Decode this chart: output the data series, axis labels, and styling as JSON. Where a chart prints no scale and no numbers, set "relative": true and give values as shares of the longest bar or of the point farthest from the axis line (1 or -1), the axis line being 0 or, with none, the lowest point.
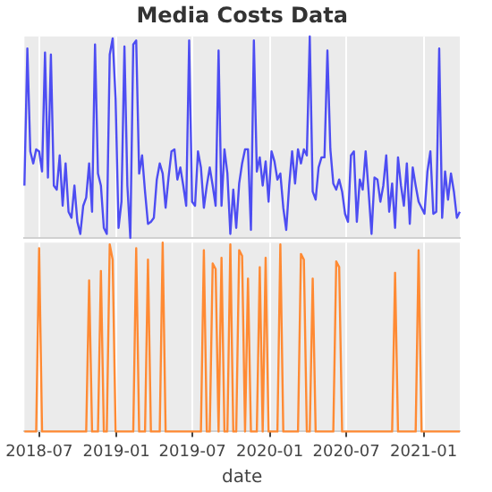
{
  "chart_data": [
    {
      "type": "line",
      "title": "Media Costs Data",
      "relative": true,
      "grid": "x",
      "tick_labels": false,
      "legend": false,
      "xlim": [
        "2018-05-27",
        "2021-03-28"
      ],
      "xticks": [
        "2018-07",
        "2019-01",
        "2019-07",
        "2020-01",
        "2020-07",
        "2021-01"
      ],
      "x": [
        "2018-05-27",
        "2018-06-03",
        "2018-06-10",
        "2018-06-17",
        "2018-06-24",
        "2018-07-01",
        "2018-07-08",
        "2018-07-15",
        "2018-07-22",
        "2018-07-29",
        "2018-08-05",
        "2018-08-12",
        "2018-08-19",
        "2018-08-26",
        "2018-09-02",
        "2018-09-09",
        "2018-09-16",
        "2018-09-23",
        "2018-09-30",
        "2018-10-07",
        "2018-10-14",
        "2018-10-21",
        "2018-10-28",
        "2018-11-04",
        "2018-11-11",
        "2018-11-18",
        "2018-11-25",
        "2018-12-02",
        "2018-12-09",
        "2018-12-16",
        "2018-12-23",
        "2018-12-30",
        "2019-01-06",
        "2019-01-13",
        "2019-01-20",
        "2019-01-27",
        "2019-02-03",
        "2019-02-10",
        "2019-02-17",
        "2019-02-24",
        "2019-03-03",
        "2019-03-10",
        "2019-03-17",
        "2019-03-24",
        "2019-03-31",
        "2019-04-07",
        "2019-04-14",
        "2019-04-21",
        "2019-04-28",
        "2019-05-05",
        "2019-05-12",
        "2019-05-19",
        "2019-05-26",
        "2019-06-02",
        "2019-06-09",
        "2019-06-16",
        "2019-06-23",
        "2019-06-30",
        "2019-07-07",
        "2019-07-14",
        "2019-07-21",
        "2019-07-28",
        "2019-08-04",
        "2019-08-11",
        "2019-08-18",
        "2019-08-25",
        "2019-09-01",
        "2019-09-08",
        "2019-09-15",
        "2019-09-22",
        "2019-09-29",
        "2019-10-06",
        "2019-10-13",
        "2019-10-20",
        "2019-10-27",
        "2019-11-03",
        "2019-11-10",
        "2019-11-17",
        "2019-11-24",
        "2019-12-01",
        "2019-12-08",
        "2019-12-15",
        "2019-12-22",
        "2019-12-29",
        "2020-01-05",
        "2020-01-12",
        "2020-01-19",
        "2020-01-26",
        "2020-02-02",
        "2020-02-09",
        "2020-02-16",
        "2020-02-23",
        "2020-03-01",
        "2020-03-08",
        "2020-03-15",
        "2020-03-22",
        "2020-03-29",
        "2020-04-05",
        "2020-04-12",
        "2020-04-19",
        "2020-04-26",
        "2020-05-03",
        "2020-05-10",
        "2020-05-17",
        "2020-05-24",
        "2020-05-31",
        "2020-06-07",
        "2020-06-14",
        "2020-06-21",
        "2020-06-28",
        "2020-07-05",
        "2020-07-12",
        "2020-07-19",
        "2020-07-26",
        "2020-08-02",
        "2020-08-09",
        "2020-08-16",
        "2020-08-23",
        "2020-08-30",
        "2020-09-06",
        "2020-09-13",
        "2020-09-20",
        "2020-09-27",
        "2020-10-04",
        "2020-10-11",
        "2020-10-18",
        "2020-10-25",
        "2020-11-01",
        "2020-11-08",
        "2020-11-15",
        "2020-11-22",
        "2020-11-29",
        "2020-12-06",
        "2020-12-13",
        "2020-12-20",
        "2020-12-27",
        "2021-01-03",
        "2021-01-10",
        "2021-01-17",
        "2021-01-24",
        "2021-01-31",
        "2021-02-07",
        "2021-02-14",
        "2021-02-21",
        "2021-02-28",
        "2021-03-07",
        "2021-03-14",
        "2021-03-21",
        "2021-03-28"
      ],
      "series": [
        {
          "color": "#4d4df2",
          "values": [
            0.26,
            0.94,
            0.43,
            0.37,
            0.44,
            0.43,
            0.33,
            0.92,
            0.3,
            0.91,
            0.26,
            0.24,
            0.41,
            0.16,
            0.37,
            0.13,
            0.1,
            0.26,
            0.08,
            0.02,
            0.16,
            0.2,
            0.37,
            0.13,
            0.96,
            0.32,
            0.26,
            0.05,
            0.02,
            0.91,
            0.99,
            0.69,
            0.05,
            0.18,
            0.95,
            0.26,
            0,
            0.96,
            0.98,
            0.32,
            0.41,
            0.23,
            0.07,
            0.08,
            0.1,
            0.29,
            0.37,
            0.32,
            0.15,
            0.3,
            0.43,
            0.44,
            0.29,
            0.35,
            0.26,
            0.16,
            0.98,
            0.18,
            0.16,
            0.43,
            0.35,
            0.15,
            0.26,
            0.35,
            0.26,
            0.16,
            0.93,
            0.16,
            0.44,
            0.32,
            0.02,
            0.24,
            0.05,
            0.27,
            0.37,
            0.44,
            0.44,
            0.04,
            0.98,
            0.33,
            0.4,
            0.26,
            0.38,
            0.18,
            0.43,
            0.38,
            0.29,
            0.32,
            0.15,
            0.04,
            0.26,
            0.43,
            0.27,
            0.44,
            0.37,
            0.44,
            0.41,
            1,
            0.23,
            0.19,
            0.35,
            0.4,
            0.4,
            0.93,
            0.44,
            0.27,
            0.24,
            0.29,
            0.23,
            0.12,
            0.08,
            0.41,
            0.43,
            0.08,
            0.29,
            0.24,
            0.43,
            0.23,
            0.02,
            0.3,
            0.29,
            0.18,
            0.26,
            0.41,
            0.13,
            0.27,
            0.05,
            0.4,
            0.26,
            0.16,
            0.37,
            0.07,
            0.35,
            0.26,
            0.18,
            0.15,
            0.12,
            0.33,
            0.43,
            0.12,
            0.13,
            0.94,
            0.1,
            0.33,
            0.19,
            0.32,
            0.23,
            0.1,
            0.13
          ]
        }
      ]
    },
    {
      "type": "line",
      "xlabel": "date",
      "relative": true,
      "grid": "x",
      "tick_labels": "x",
      "legend": false,
      "xlim": [
        "2018-05-27",
        "2021-03-28"
      ],
      "xticks": [
        "2018-07",
        "2019-01",
        "2019-07",
        "2020-01",
        "2020-07",
        "2021-01"
      ],
      "x": [
        "2018-05-27",
        "2018-06-03",
        "2018-06-10",
        "2018-06-17",
        "2018-06-24",
        "2018-07-01",
        "2018-07-08",
        "2018-07-15",
        "2018-07-22",
        "2018-07-29",
        "2018-08-05",
        "2018-08-12",
        "2018-08-19",
        "2018-08-26",
        "2018-09-02",
        "2018-09-09",
        "2018-09-16",
        "2018-09-23",
        "2018-09-30",
        "2018-10-07",
        "2018-10-14",
        "2018-10-21",
        "2018-10-28",
        "2018-11-04",
        "2018-11-11",
        "2018-11-18",
        "2018-11-25",
        "2018-12-02",
        "2018-12-09",
        "2018-12-16",
        "2018-12-23",
        "2018-12-30",
        "2019-01-06",
        "2019-01-13",
        "2019-01-20",
        "2019-01-27",
        "2019-02-03",
        "2019-02-10",
        "2019-02-17",
        "2019-02-24",
        "2019-03-03",
        "2019-03-10",
        "2019-03-17",
        "2019-03-24",
        "2019-03-31",
        "2019-04-07",
        "2019-04-14",
        "2019-04-21",
        "2019-04-28",
        "2019-05-05",
        "2019-05-12",
        "2019-05-19",
        "2019-05-26",
        "2019-06-02",
        "2019-06-09",
        "2019-06-16",
        "2019-06-23",
        "2019-06-30",
        "2019-07-07",
        "2019-07-14",
        "2019-07-21",
        "2019-07-28",
        "2019-08-04",
        "2019-08-11",
        "2019-08-18",
        "2019-08-25",
        "2019-09-01",
        "2019-09-08",
        "2019-09-15",
        "2019-09-22",
        "2019-09-29",
        "2019-10-06",
        "2019-10-13",
        "2019-10-20",
        "2019-10-27",
        "2019-11-03",
        "2019-11-10",
        "2019-11-17",
        "2019-11-24",
        "2019-12-01",
        "2019-12-08",
        "2019-12-15",
        "2019-12-22",
        "2019-12-29",
        "2020-01-05",
        "2020-01-12",
        "2020-01-19",
        "2020-01-26",
        "2020-02-02",
        "2020-02-09",
        "2020-02-16",
        "2020-02-23",
        "2020-03-01",
        "2020-03-08",
        "2020-03-15",
        "2020-03-22",
        "2020-03-29",
        "2020-04-05",
        "2020-04-12",
        "2020-04-19",
        "2020-04-26",
        "2020-05-03",
        "2020-05-10",
        "2020-05-17",
        "2020-05-24",
        "2020-05-31",
        "2020-06-07",
        "2020-06-14",
        "2020-06-21",
        "2020-06-28",
        "2020-07-05",
        "2020-07-12",
        "2020-07-19",
        "2020-07-26",
        "2020-08-02",
        "2020-08-09",
        "2020-08-16",
        "2020-08-23",
        "2020-08-30",
        "2020-09-06",
        "2020-09-13",
        "2020-09-20",
        "2020-09-27",
        "2020-10-04",
        "2020-10-11",
        "2020-10-18",
        "2020-10-25",
        "2020-11-01",
        "2020-11-08",
        "2020-11-15",
        "2020-11-22",
        "2020-11-29",
        "2020-12-06",
        "2020-12-13",
        "2020-12-20",
        "2020-12-27",
        "2021-01-03",
        "2021-01-10",
        "2021-01-17",
        "2021-01-24",
        "2021-01-31",
        "2021-02-07",
        "2021-02-14",
        "2021-02-21",
        "2021-02-28",
        "2021-03-07",
        "2021-03-14",
        "2021-03-21",
        "2021-03-28"
      ],
      "series": [
        {
          "color": "#ff8a33",
          "values": [
            0,
            0,
            0,
            0,
            0,
            0.97,
            0,
            0,
            0,
            0,
            0,
            0,
            0,
            0,
            0,
            0,
            0,
            0,
            0,
            0,
            0,
            0,
            0.8,
            0,
            0,
            0,
            0.85,
            0,
            0,
            0.99,
            0.91,
            0,
            0,
            0,
            0,
            0,
            0,
            0,
            0.97,
            0,
            0,
            0,
            0.91,
            0,
            0,
            0,
            0,
            1,
            0,
            0,
            0,
            0,
            0,
            0,
            0,
            0,
            0,
            0,
            0,
            0,
            0,
            0.96,
            0,
            0,
            0.89,
            0.86,
            0,
            0.92,
            0,
            0,
            0.99,
            0,
            0,
            0.96,
            0.93,
            0,
            0.81,
            0,
            0,
            0,
            0.87,
            0,
            0.92,
            0,
            0,
            0,
            0,
            0.99,
            0,
            0,
            0,
            0,
            0,
            0,
            0.94,
            0.91,
            0,
            0,
            0.81,
            0,
            0,
            0,
            0,
            0,
            0,
            0,
            0.9,
            0.87,
            0,
            0,
            0,
            0,
            0,
            0,
            0,
            0,
            0,
            0,
            0,
            0,
            0,
            0,
            0,
            0,
            0,
            0,
            0.84,
            0,
            0,
            0,
            0,
            0,
            0,
            0,
            0.96,
            0,
            0,
            0,
            0,
            0,
            0,
            0,
            0,
            0,
            0,
            0,
            0,
            0,
            0
          ]
        }
      ]
    }
  ]
}
